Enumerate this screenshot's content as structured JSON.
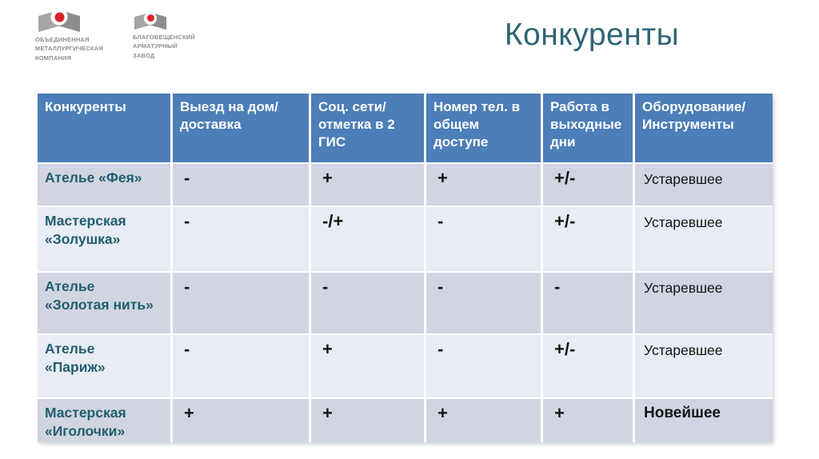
{
  "title": "Конкуренты",
  "logos": [
    {
      "name": "ОМК",
      "icon": "omk-flag-icon",
      "lines": [
        "ОБЪЕДИНЕННАЯ",
        "МЕТАЛЛУРГИЧЕСКАЯ",
        "КОМПАНИЯ"
      ]
    },
    {
      "name": "БАЗ",
      "icon": "baz-flag-icon",
      "lines": [
        "БЛАГОВЕЩЕНСКИЙ",
        "АРМАТУРНЫЙ",
        "ЗАВОД"
      ]
    }
  ],
  "colors": {
    "header_bg": "#4C7EB8",
    "row_dark": "#D0D5E1",
    "row_light": "#E8ECF4",
    "title_text": "#2E6575",
    "name_text": "#215E6E",
    "logo_gray": "#8F8F8F",
    "logo_red": "#D8232A"
  },
  "table": {
    "headers": [
      "Конкуренты",
      "Выезд на дом/\nдоставка",
      "Соц. сети/\nотметка в 2\nГИС",
      "Номер тел. в\nобщем\nдоступе",
      "Работа в\nвыходные\nдни",
      "Оборудование/\nИнструменты"
    ],
    "rows": [
      {
        "name": "Ателье «Фея»",
        "values": [
          "-",
          "+",
          "+",
          "+/-",
          "Устаревшее"
        ],
        "equipment_bold": false,
        "shade": "dark"
      },
      {
        "name": "Мастерская\n«Золушка»",
        "values": [
          "-",
          "-/+",
          "-",
          "+/-",
          "Устаревшее"
        ],
        "equipment_bold": false,
        "shade": "light"
      },
      {
        "name": "Ателье\n«Золотая нить»",
        "values": [
          "-",
          "-",
          "-",
          "-",
          "Устаревшее"
        ],
        "equipment_bold": false,
        "shade": "dark"
      },
      {
        "name": "Ателье\n«Париж»",
        "values": [
          "-",
          "+",
          "-",
          "+/-",
          "Устаревшее"
        ],
        "equipment_bold": false,
        "shade": "light"
      },
      {
        "name": "Мастерская\n«Иголочки»",
        "values": [
          "+",
          "+",
          "+",
          "+",
          "Новейшее"
        ],
        "equipment_bold": true,
        "shade": "dark"
      }
    ]
  }
}
